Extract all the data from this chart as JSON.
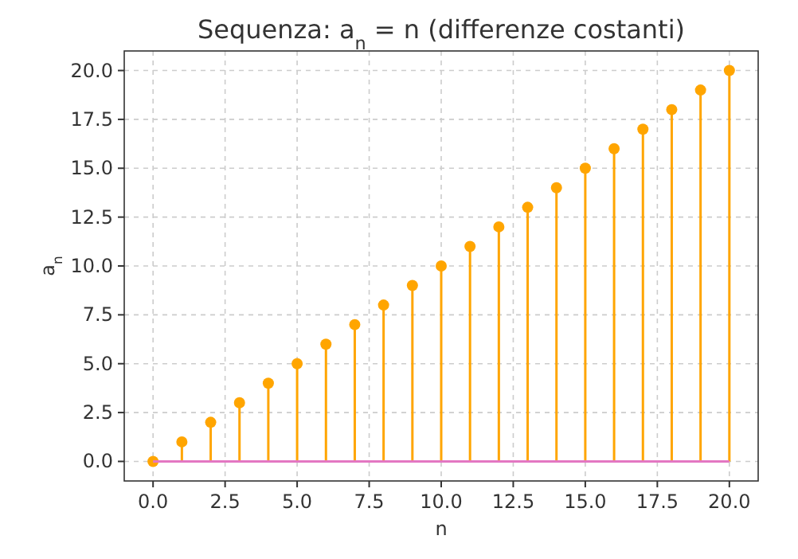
{
  "chart_data": {
    "type": "lollipop",
    "title": "Sequenza: a$_{n}$ = n (differenze costanti)",
    "xlabel": "n",
    "ylabel": "a$_{n}$",
    "x": [
      0,
      1,
      2,
      3,
      4,
      5,
      6,
      7,
      8,
      9,
      10,
      11,
      12,
      13,
      14,
      15,
      16,
      17,
      18,
      19,
      20
    ],
    "series": [
      {
        "color": "#ffa500",
        "values": [
          0,
          1,
          2,
          3,
          4,
          5,
          6,
          7,
          8,
          9,
          10,
          11,
          12,
          13,
          14,
          15,
          16,
          17,
          18,
          19,
          20
        ]
      }
    ],
    "xlim": [
      -1,
      21
    ],
    "ylim": [
      -1,
      21
    ],
    "xticks": [
      {
        "value": 0,
        "label": "0.0"
      },
      {
        "value": 2.5,
        "label": "2.5"
      },
      {
        "value": 5,
        "label": "5.0"
      },
      {
        "value": 7.5,
        "label": "7.5"
      },
      {
        "value": 10,
        "label": "10.0"
      },
      {
        "value": 12.5,
        "label": "12.5"
      },
      {
        "value": 15,
        "label": "15.0"
      },
      {
        "value": 17.5,
        "label": "17.5"
      },
      {
        "value": 20,
        "label": "20.0"
      }
    ],
    "yticks": [
      {
        "value": 0,
        "label": "0.0"
      },
      {
        "value": 2.5,
        "label": "2.5"
      },
      {
        "value": 5,
        "label": "5.0"
      },
      {
        "value": 7.5,
        "label": "7.5"
      },
      {
        "value": 10,
        "label": "10.0"
      },
      {
        "value": 12.5,
        "label": "12.5"
      },
      {
        "value": 15,
        "label": "15.0"
      },
      {
        "value": 17.5,
        "label": "17.5"
      },
      {
        "value": 20,
        "label": "20.0"
      }
    ],
    "ref_lines": [
      {
        "axis": "y",
        "value": 0,
        "color": "#e377c2"
      }
    ],
    "grid": true,
    "marker": "circle",
    "line_style": "solid"
  }
}
